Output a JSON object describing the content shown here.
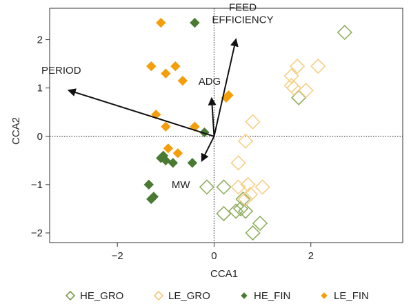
{
  "chart_data": {
    "type": "scatter",
    "xlabel": "CCA1",
    "ylabel": "CCA2",
    "xlim": [
      -3.4,
      3.9
    ],
    "ylim": [
      -2.2,
      2.65
    ],
    "xticks": [
      -2,
      0,
      2
    ],
    "yticks": [
      -2,
      -1,
      0,
      1,
      2
    ],
    "tick_labels_x": [
      "−2",
      "0",
      "2"
    ],
    "tick_labels_y": [
      "−2",
      "−1",
      "0",
      "1",
      "2"
    ],
    "reference_lines": {
      "x": 0,
      "y": 0,
      "style": "dotted"
    },
    "legend": {
      "placement": "bottom",
      "entries": [
        {
          "label": "HE_GRO",
          "marker": "open-diamond",
          "color": "#7a9a4a"
        },
        {
          "label": "LE_GRO",
          "marker": "open-diamond",
          "color": "#f2c879"
        },
        {
          "label": "HE_FIN",
          "marker": "filled-diamond",
          "color": "#4a7a32"
        },
        {
          "label": "LE_FIN",
          "marker": "filled-diamond",
          "color": "#f59e0b"
        }
      ]
    },
    "vectors": [
      {
        "label": "PERIOD",
        "x": -3.0,
        "y": 0.95
      },
      {
        "label": "FEED EFFICIENCY",
        "label_lines": [
          "FEED",
          "EFFICIENCY"
        ],
        "x": 0.45,
        "y": 2.0
      },
      {
        "label": "ADG",
        "x": -0.05,
        "y": 0.78
      },
      {
        "label": "MW",
        "x": -0.25,
        "y": -0.5
      }
    ],
    "series": [
      {
        "name": "HE_GRO",
        "marker": "open-diamond",
        "color": "#8fae5f",
        "points": [
          [
            2.7,
            2.15
          ],
          [
            1.75,
            0.8
          ],
          [
            -0.15,
            -1.05
          ],
          [
            0.2,
            -1.05
          ],
          [
            0.2,
            -1.6
          ],
          [
            0.55,
            -1.5
          ],
          [
            0.45,
            -1.55
          ],
          [
            0.65,
            -1.55
          ],
          [
            0.95,
            -1.8
          ],
          [
            0.8,
            -2.0
          ],
          [
            0.6,
            -1.3
          ]
        ]
      },
      {
        "name": "LE_GRO",
        "marker": "open-diamond",
        "color": "#f5cf86",
        "points": [
          [
            1.6,
            1.25
          ],
          [
            1.72,
            1.45
          ],
          [
            2.15,
            1.45
          ],
          [
            1.6,
            1.05
          ],
          [
            1.65,
            1.0
          ],
          [
            1.9,
            0.95
          ],
          [
            0.8,
            0.3
          ],
          [
            0.65,
            -0.1
          ],
          [
            0.5,
            -0.55
          ],
          [
            0.5,
            -1.05
          ],
          [
            0.7,
            -1.0
          ],
          [
            1.0,
            -1.05
          ],
          [
            0.65,
            -1.3
          ],
          [
            0.75,
            -1.2
          ]
        ]
      },
      {
        "name": "HE_FIN",
        "marker": "filled-diamond",
        "color": "#4a7a32",
        "points": [
          [
            -0.4,
            2.35
          ],
          [
            -0.2,
            0.08
          ],
          [
            -1.1,
            -0.45
          ],
          [
            -1.0,
            -0.5
          ],
          [
            -0.85,
            -0.55
          ],
          [
            -1.05,
            -0.4
          ],
          [
            -0.45,
            -0.55
          ],
          [
            -1.35,
            -1.0
          ],
          [
            -1.25,
            -1.25
          ],
          [
            -1.3,
            -1.3
          ]
        ]
      },
      {
        "name": "LE_FIN",
        "marker": "filled-diamond",
        "color": "#f59e0b",
        "points": [
          [
            -1.1,
            2.35
          ],
          [
            -1.3,
            1.45
          ],
          [
            -1.0,
            1.3
          ],
          [
            -0.8,
            1.45
          ],
          [
            -0.65,
            1.15
          ],
          [
            0.25,
            0.8
          ],
          [
            0.3,
            0.85
          ],
          [
            -1.2,
            0.45
          ],
          [
            -1.0,
            0.2
          ],
          [
            -0.4,
            0.2
          ],
          [
            -0.95,
            -0.25
          ],
          [
            -0.75,
            -0.35
          ]
        ]
      }
    ]
  }
}
